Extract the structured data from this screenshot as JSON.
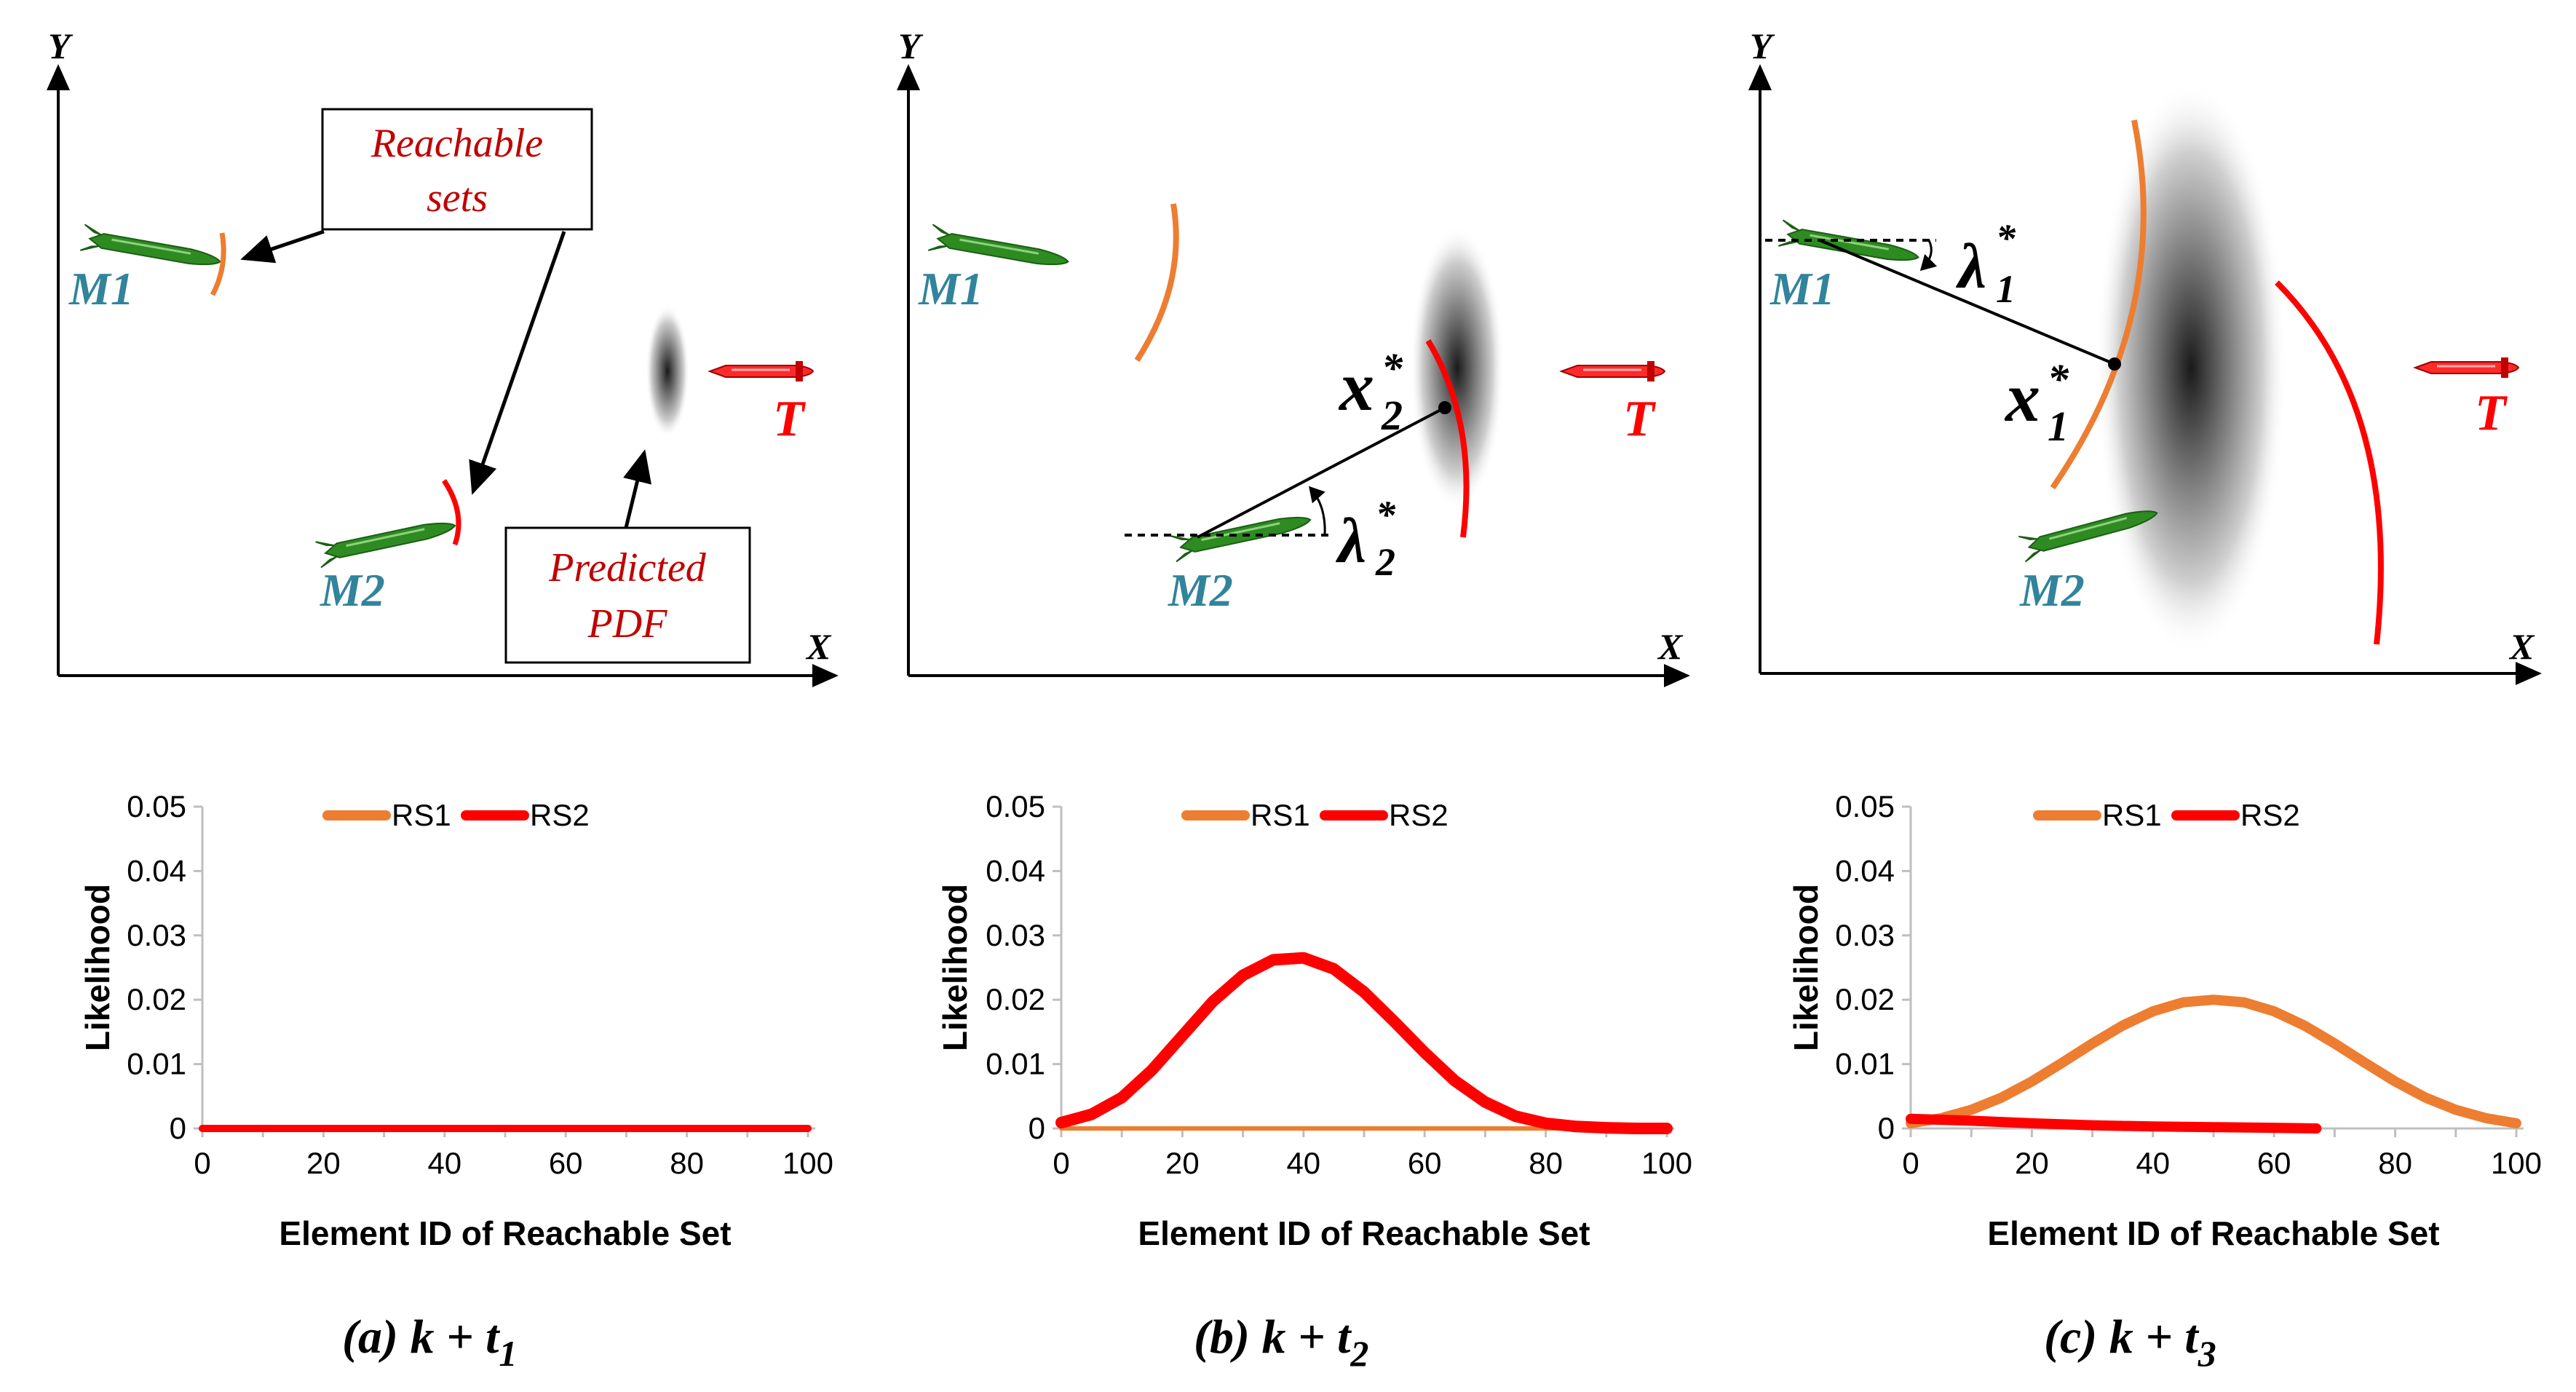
{
  "colors": {
    "rs1": "#ed7d31",
    "rs2": "#ff0000",
    "missile": "#2e8b22",
    "missile_label": "#31849b",
    "target": "#ff0000",
    "axis": "#000000",
    "grid_axis": "#bfbfbf"
  },
  "panels": [
    {
      "id": "a",
      "caption_prefix": "(a) k + t",
      "caption_sub": "1",
      "scene": {
        "axis_x_label": "X",
        "axis_y_label": "Y",
        "m1_label": "M1",
        "m2_label": "M2",
        "target_label": "T",
        "reachable_sets_label_line1": "Reachable",
        "reachable_sets_label_line2": "sets",
        "predicted_pdf_label_line1": "Predicted",
        "predicted_pdf_label_line2": "PDF"
      }
    },
    {
      "id": "b",
      "caption_prefix": "(b) k + t",
      "caption_sub": "2",
      "scene": {
        "axis_x_label": "X",
        "axis_y_label": "Y",
        "m1_label": "M1",
        "m2_label": "M2",
        "target_label": "T",
        "point_label": "x",
        "point_sub": "2",
        "point_sup": "*",
        "angle_label": "λ",
        "angle_sub": "2",
        "angle_sup": "*"
      }
    },
    {
      "id": "c",
      "caption_prefix": "(c) k + t",
      "caption_sub": "3",
      "scene": {
        "axis_x_label": "X",
        "axis_y_label": "Y",
        "m1_label": "M1",
        "m2_label": "M2",
        "target_label": "T",
        "point_label": "x",
        "point_sub": "1",
        "point_sup": "*",
        "angle_label": "λ",
        "angle_sub": "1",
        "angle_sup": "*"
      }
    }
  ],
  "chart_data": [
    {
      "type": "line",
      "panel": "a",
      "xlabel": "Element ID of Reachable Set",
      "ylabel": "Likelihood",
      "xlim": [
        0,
        100
      ],
      "ylim": [
        0,
        0.05
      ],
      "x_ticks": [
        "0",
        "20",
        "40",
        "60",
        "80",
        "100"
      ],
      "y_ticks": [
        "0",
        "0.01",
        "0.02",
        "0.03",
        "0.04",
        "0.05"
      ],
      "legend": [
        "RS1",
        "RS2"
      ],
      "series": [
        {
          "name": "RS1",
          "x": [
            0,
            100
          ],
          "values": [
            0,
            0
          ]
        },
        {
          "name": "RS2",
          "x": [
            0,
            100
          ],
          "values": [
            0,
            0
          ]
        }
      ]
    },
    {
      "type": "line",
      "panel": "b",
      "xlabel": "Element ID of Reachable Set",
      "ylabel": "Likelihood",
      "xlim": [
        0,
        100
      ],
      "ylim": [
        0,
        0.05
      ],
      "x_ticks": [
        "0",
        "20",
        "40",
        "60",
        "80",
        "100"
      ],
      "y_ticks": [
        "0",
        "0.01",
        "0.02",
        "0.03",
        "0.04",
        "0.05"
      ],
      "legend": [
        "RS1",
        "RS2"
      ],
      "series": [
        {
          "name": "RS1",
          "x": [
            0,
            100
          ],
          "values": [
            0,
            0
          ]
        },
        {
          "name": "RS2",
          "x": [
            0,
            5,
            10,
            15,
            20,
            25,
            30,
            35,
            40,
            45,
            50,
            55,
            60,
            65,
            70,
            75,
            80,
            85,
            90,
            95,
            100
          ],
          "values": [
            0.0009,
            0.0022,
            0.0048,
            0.0091,
            0.0144,
            0.0197,
            0.0238,
            0.0262,
            0.0265,
            0.0248,
            0.0212,
            0.0166,
            0.0118,
            0.0074,
            0.0041,
            0.0019,
            0.0008,
            0.0003,
            0.0001,
            0.0,
            0.0
          ]
        }
      ]
    },
    {
      "type": "line",
      "panel": "c",
      "xlabel": "Element ID of Reachable Set",
      "ylabel": "Likelihood",
      "xlim": [
        0,
        100
      ],
      "ylim": [
        0,
        0.05
      ],
      "x_ticks": [
        "0",
        "20",
        "40",
        "60",
        "80",
        "100"
      ],
      "y_ticks": [
        "0",
        "0.01",
        "0.02",
        "0.03",
        "0.04",
        "0.05"
      ],
      "legend": [
        "RS1",
        "RS2"
      ],
      "series": [
        {
          "name": "RS1",
          "x": [
            0,
            5,
            10,
            15,
            20,
            25,
            30,
            35,
            40,
            45,
            50,
            55,
            60,
            65,
            70,
            75,
            80,
            85,
            90,
            95,
            100
          ],
          "values": [
            0.0008,
            0.0016,
            0.0029,
            0.0048,
            0.0073,
            0.0102,
            0.0132,
            0.016,
            0.0182,
            0.0196,
            0.02,
            0.0196,
            0.0182,
            0.016,
            0.0132,
            0.0102,
            0.0073,
            0.0048,
            0.0029,
            0.0016,
            0.0008
          ]
        },
        {
          "name": "RS2",
          "x": [
            0,
            10,
            20,
            30,
            40,
            50,
            60,
            67
          ],
          "values": [
            0.0015,
            0.0012,
            0.0008,
            0.0005,
            0.0003,
            0.0002,
            0.0001,
            0.0
          ]
        }
      ]
    }
  ]
}
